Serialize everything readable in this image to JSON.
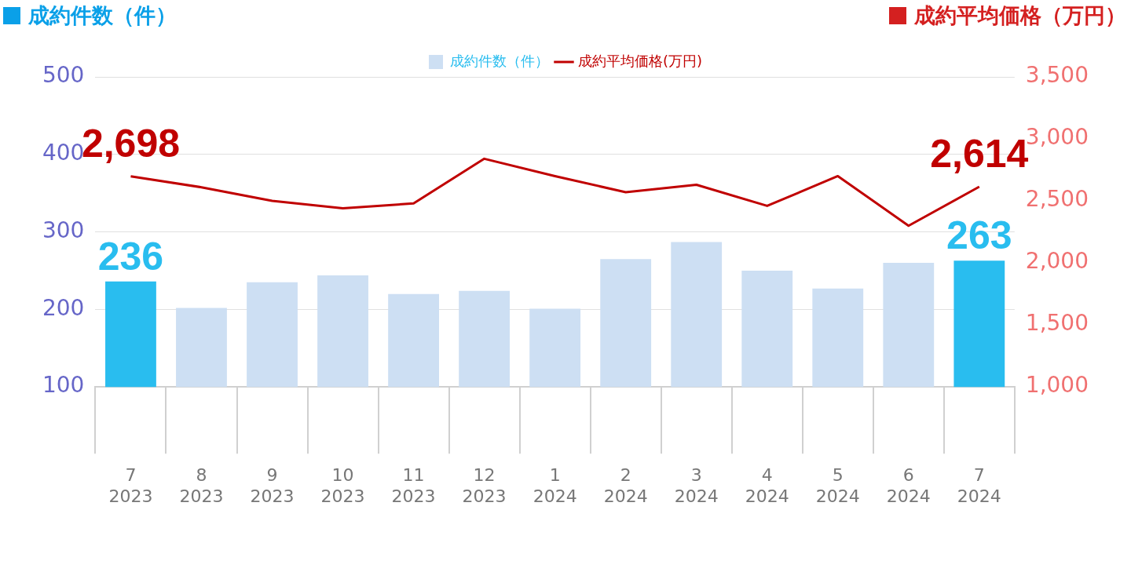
{
  "chart_data": {
    "type": "bar",
    "ylabel": "成約件数（件）",
    "y2label": "成約平均価格（万円）",
    "categories": [
      "7\n2023",
      "8\n2023",
      "9\n2023",
      "10\n2023",
      "11\n2023",
      "12\n2023",
      "1\n2024",
      "2\n2024",
      "3\n2024",
      "4\n2024",
      "5\n2024",
      "6\n2024",
      "7\n2024"
    ],
    "series": [
      {
        "name": "成約件数（件）",
        "colors": [
          "#29bdef",
          "#cddff3",
          "#cddff3",
          "#cddff3",
          "#cddff3",
          "#cddff3",
          "#cddff3",
          "#cddff3",
          "#cddff3",
          "#cddff3",
          "#cddff3",
          "#cddff3",
          "#29bdef"
        ],
        "values": [
          236,
          202,
          235,
          244,
          220,
          224,
          201,
          265,
          287,
          250,
          227,
          260,
          263
        ],
        "value_labels": [
          "236",
          null,
          null,
          null,
          null,
          null,
          null,
          null,
          null,
          null,
          null,
          null,
          "263"
        ]
      },
      {
        "name": "成約平均価格(万円)",
        "type": "line",
        "color": "#c00000",
        "axis": "y2",
        "values": [
          2698,
          2610,
          2500,
          2440,
          2480,
          2840,
          2700,
          2570,
          2630,
          2460,
          2700,
          2300,
          2614
        ],
        "value_labels": [
          "2,698",
          null,
          null,
          null,
          null,
          null,
          null,
          null,
          null,
          null,
          null,
          null,
          "2,614"
        ]
      }
    ],
    "ylim": [
      100,
      500
    ],
    "yticks": [
      100,
      200,
      300,
      400,
      500
    ],
    "y2lim": [
      1000,
      3500
    ],
    "y2ticks": [
      {
        "value": 1000,
        "label": "1,000"
      },
      {
        "value": 1500,
        "label": "1,500"
      },
      {
        "value": 2000,
        "label": "2,000"
      },
      {
        "value": 2500,
        "label": "2,500"
      },
      {
        "value": 3000,
        "label": "3,000"
      },
      {
        "value": 3500,
        "label": "3,500"
      }
    ],
    "grid": "y",
    "legend": "top",
    "marker": "none"
  }
}
